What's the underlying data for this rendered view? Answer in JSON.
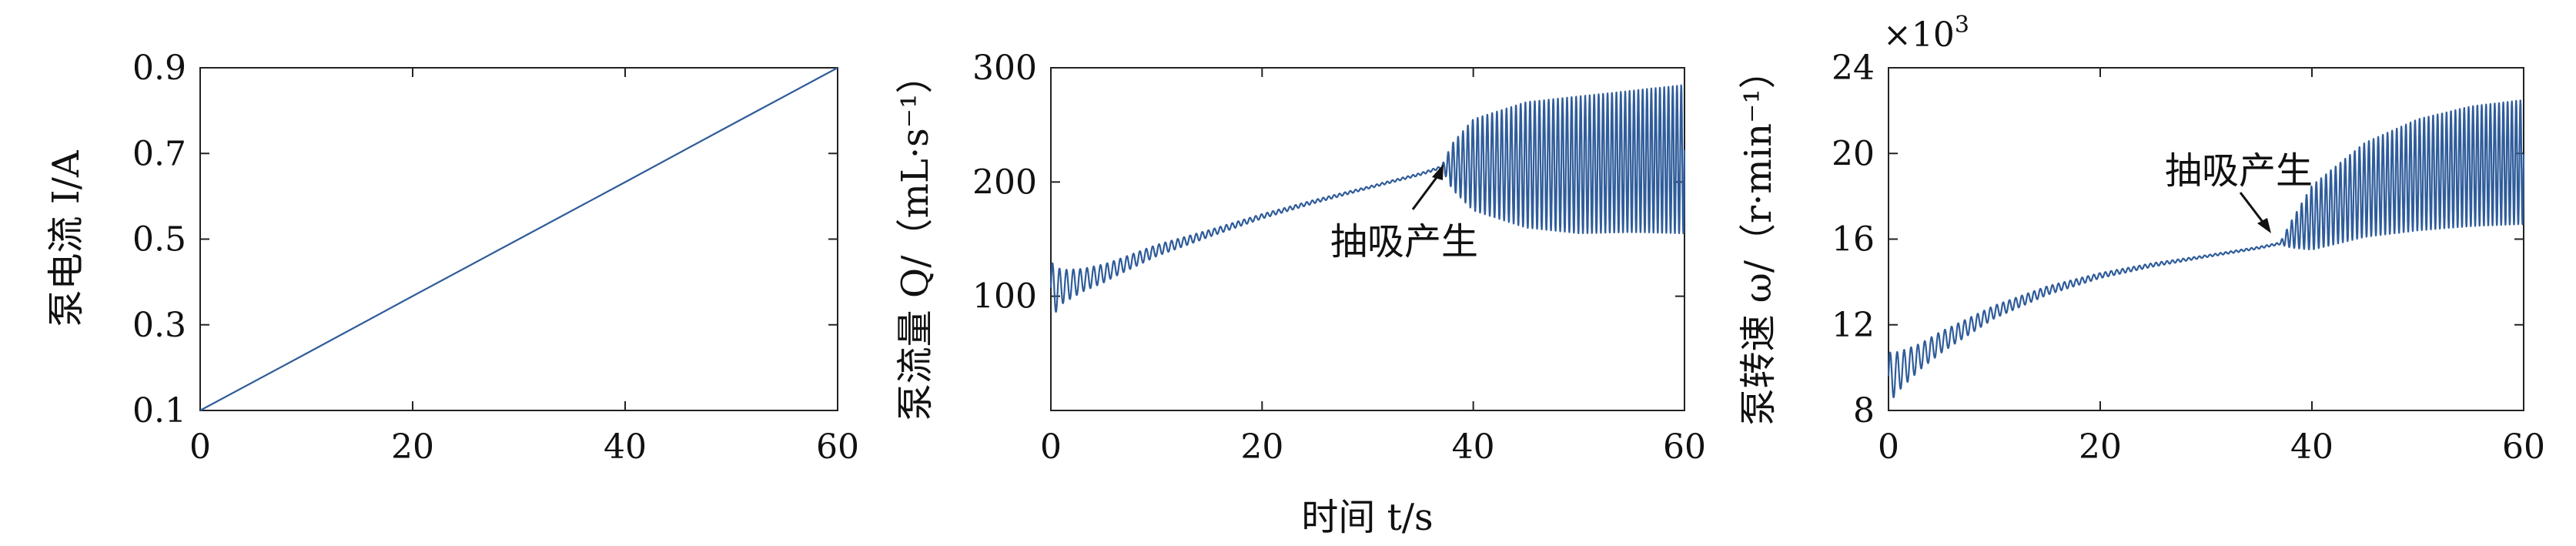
{
  "chart_data": [
    {
      "type": "line",
      "ylabel": "泵电流 I/A",
      "x_ticks": [
        "0",
        "20",
        "40",
        "60"
      ],
      "y_ticks": [
        "0.1",
        "0.3",
        "0.5",
        "0.7",
        "0.9"
      ],
      "xlim": [
        0,
        60
      ],
      "ylim": [
        0.1,
        0.9
      ],
      "series": [
        {
          "x": [
            0,
            10,
            20,
            30,
            40,
            50,
            60
          ],
          "y": [
            0.1,
            0.233,
            0.367,
            0.5,
            0.633,
            0.767,
            0.9
          ]
        }
      ]
    },
    {
      "type": "line",
      "ylabel": "泵流量 Q/（mL·s⁻¹）",
      "x_ticks": [
        "0",
        "20",
        "40",
        "60"
      ],
      "y_ticks": [
        "100",
        "200",
        "300"
      ],
      "xlim": [
        0,
        60
      ],
      "ylim": [
        0,
        300
      ],
      "annotation": {
        "text": "抽吸产生",
        "x": 37,
        "y": 212
      },
      "series": [
        {
          "mean_x": [
            0,
            5,
            10,
            15,
            20,
            25,
            30,
            35,
            37,
            40,
            45,
            50,
            55,
            60
          ],
          "mean_y": [
            105,
            120,
            140,
            155,
            170,
            183,
            195,
            207,
            213,
            215,
            215,
            215,
            218,
            220
          ],
          "osc_x": [
            0,
            1,
            3,
            6,
            10,
            15,
            20,
            30,
            37,
            38,
            40,
            45,
            50,
            55,
            60
          ],
          "osc_amp": [
            25,
            15,
            10,
            7,
            5,
            3,
            2,
            1,
            1,
            20,
            40,
            55,
            60,
            62,
            65
          ],
          "cycles_per_s": [
            1.5,
            2.5
          ]
        }
      ]
    },
    {
      "type": "line",
      "ylabel": "泵转速 ω/（r·min⁻¹）",
      "scale_note": "×10",
      "scale_exp": "3",
      "x_ticks": [
        "0",
        "20",
        "40",
        "60"
      ],
      "y_ticks": [
        "8",
        "12",
        "16",
        "20",
        "24"
      ],
      "xlim": [
        0,
        60
      ],
      "ylim": [
        8,
        24
      ],
      "annotation": {
        "text": "抽吸产生",
        "x": 37,
        "y": 15.9
      },
      "series": [
        {
          "mean_x": [
            0,
            5,
            10,
            15,
            20,
            25,
            30,
            35,
            37,
            40,
            45,
            50,
            55,
            60
          ],
          "mean_y": [
            9.5,
            11.2,
            12.6,
            13.6,
            14.3,
            14.8,
            15.2,
            15.6,
            15.8,
            17.0,
            18.3,
            19.0,
            19.4,
            19.6
          ],
          "osc_x": [
            0,
            1,
            3,
            6,
            10,
            15,
            20,
            30,
            37,
            38,
            40,
            45,
            50,
            55,
            60
          ],
          "osc_amp": [
            1.2,
            0.9,
            0.6,
            0.45,
            0.3,
            0.2,
            0.12,
            0.05,
            0.05,
            0.6,
            1.5,
            2.2,
            2.6,
            2.8,
            2.9
          ],
          "cycles_per_s": [
            1.5,
            2.5
          ]
        }
      ]
    }
  ],
  "shared_xlabel": "时间 t/s"
}
